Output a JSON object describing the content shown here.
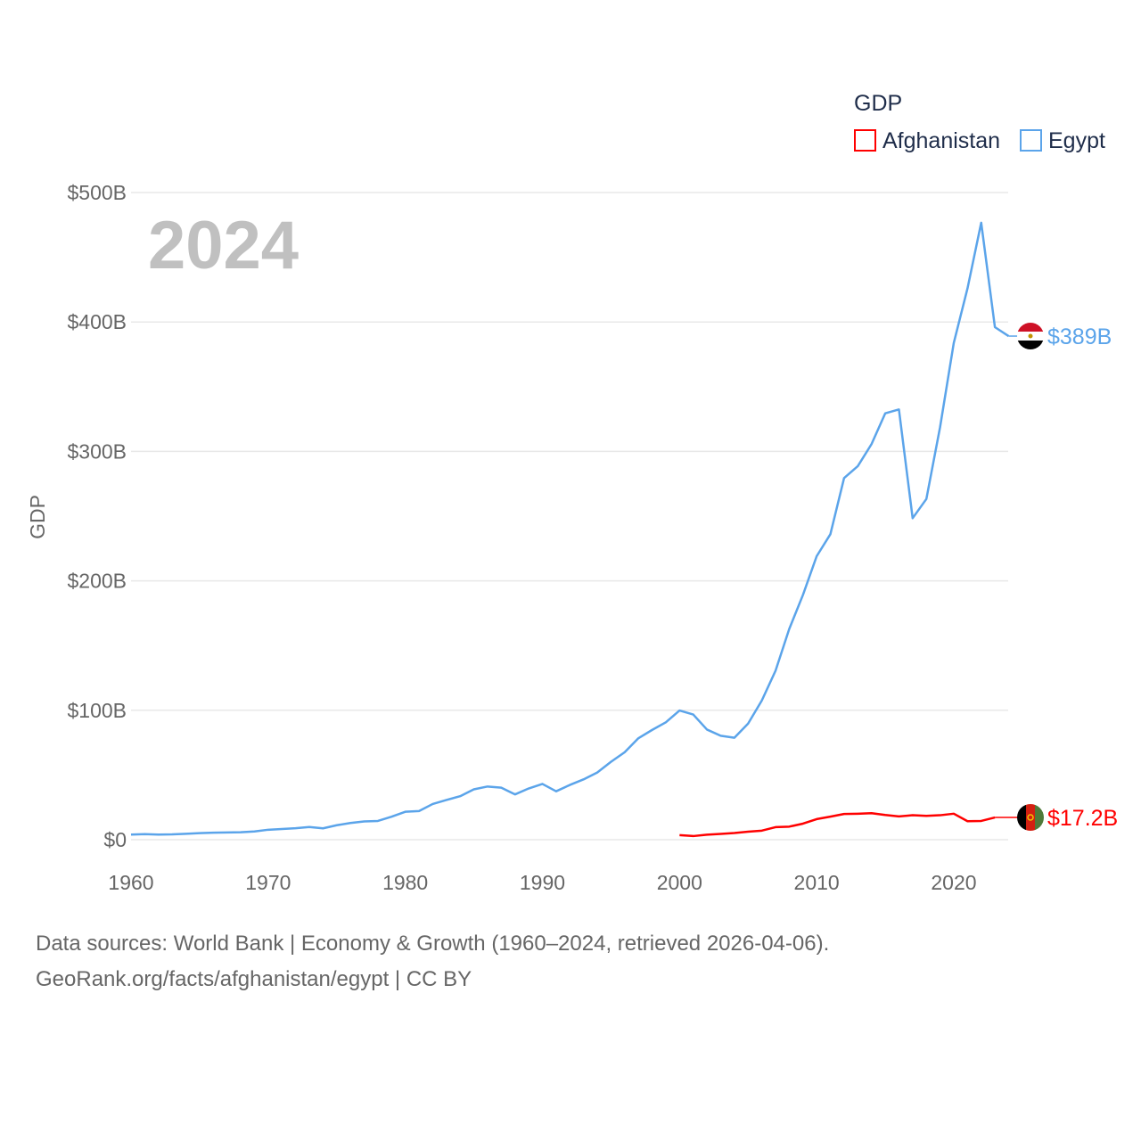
{
  "chart_data": {
    "type": "line",
    "title": "GDP",
    "ylabel": "GDP",
    "xlabel": "",
    "year_label": "2024",
    "xlim": [
      1960,
      2024
    ],
    "ylim": [
      0,
      500
    ],
    "x_ticks": [
      1960,
      1970,
      1980,
      1990,
      2000,
      2010,
      2020
    ],
    "y_ticks": [
      {
        "value": 0,
        "label": "$0"
      },
      {
        "value": 100,
        "label": "$100B"
      },
      {
        "value": 200,
        "label": "$200B"
      },
      {
        "value": 300,
        "label": "$300B"
      },
      {
        "value": 400,
        "label": "$400B"
      },
      {
        "value": 500,
        "label": "$500B"
      }
    ],
    "grid": true,
    "legend_position": "top-right",
    "series": [
      {
        "name": "Afghanistan",
        "color": "#ff0000",
        "end_label": "$17.2B",
        "flag": "afghanistan-flag",
        "x_start": 2000,
        "values": [
          3.5,
          2.8,
          3.9,
          4.5,
          5.2,
          6.2,
          7.0,
          9.7,
          10.1,
          12.4,
          15.9,
          17.8,
          19.9,
          20.1,
          20.5,
          19.1,
          18.0,
          18.9,
          18.4,
          18.9,
          20.1,
          14.3,
          14.5,
          17.2
        ]
      },
      {
        "name": "Egypt",
        "color": "#5ba4ea",
        "end_label": "$389B",
        "flag": "egypt-flag",
        "x_start": 1960,
        "values": [
          4.0,
          4.3,
          4.0,
          4.1,
          4.6,
          5.1,
          5.4,
          5.6,
          5.8,
          6.4,
          7.7,
          8.3,
          8.9,
          9.8,
          8.8,
          11.2,
          12.9,
          14.1,
          14.5,
          17.8,
          21.6,
          22.1,
          27.6,
          30.7,
          33.6,
          38.9,
          41.1,
          40.2,
          35.0,
          39.6,
          43.1,
          37.4,
          42.3,
          46.6,
          51.9,
          60.2,
          67.6,
          78.4,
          84.8,
          90.7,
          99.8,
          96.7,
          85.1,
          80.3,
          78.8,
          89.7,
          107.5,
          130.5,
          162.8,
          189.1,
          219.0,
          236.0,
          279.4,
          288.6,
          305.6,
          329.4,
          332.4,
          248.4,
          263.2,
          318.7,
          383.8,
          425.9,
          476.7,
          396.0,
          389.1
        ]
      }
    ]
  },
  "footer": {
    "line1": "Data sources: World Bank | Economy & Growth (1960–2024, retrieved 2026-04-06).",
    "line2": "GeoRank.org/facts/afghanistan/egypt | CC BY"
  }
}
